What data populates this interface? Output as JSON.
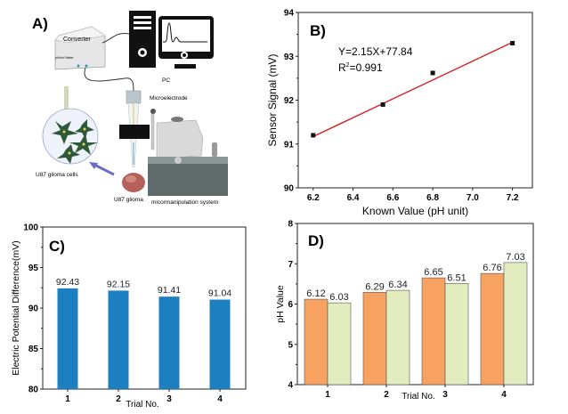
{
  "panel_a": {
    "label": "A)",
    "converter": "Converter",
    "meter": "pH/mV Meter",
    "pc": "PC",
    "microelectrode": "Microelectrode",
    "cells": "U87 glioma cells",
    "glioma": "U87 glioma",
    "system": "micormanipulation  system"
  },
  "chart_data": [
    {
      "id": "B",
      "type": "scatter",
      "panel_label": "B)",
      "xlabel": "Known Value (pH unit)",
      "ylabel": "Sensor Signal (mV)",
      "xlim": [
        6.125,
        7.3
      ],
      "ylim": [
        90,
        94
      ],
      "xticks": [
        6.2,
        6.4,
        6.6,
        6.8,
        7.0,
        7.2
      ],
      "xtick_labels": [
        "6.2",
        "6.4",
        "6.6",
        "6.8",
        "7.0",
        "7.2"
      ],
      "yticks": [
        90,
        91,
        92,
        93,
        94
      ],
      "x": [
        6.2,
        6.55,
        6.8,
        7.2
      ],
      "y": [
        91.2,
        91.9,
        92.62,
        93.3
      ],
      "fit": {
        "slope": 2.15,
        "intercept": 77.84,
        "color": "#d62020"
      },
      "equation": "Y=2.15X+77.84",
      "r2_prefix": "R",
      "r2_sup": "2",
      "r2_value": "=0.991"
    },
    {
      "id": "C",
      "type": "bar",
      "panel_label": "C)",
      "xlabel": "Trial No.",
      "ylabel": "Electric Potential Difference(mV)",
      "categories": [
        "1",
        "2",
        "3",
        "4"
      ],
      "values": [
        92.43,
        92.15,
        91.41,
        91.04
      ],
      "labels": [
        "92.43",
        "92.15",
        "91.41",
        "91.04"
      ],
      "ylim": [
        80,
        100
      ],
      "yticks": [
        80,
        85,
        90,
        95,
        100
      ],
      "color": "#1b7fc0"
    },
    {
      "id": "D",
      "type": "bar",
      "panel_label": "D)",
      "xlabel": "Trial No.",
      "ylabel": "pH Value",
      "categories": [
        "1",
        "2",
        "3",
        "4"
      ],
      "series": [
        {
          "color": "#f7a261",
          "values": [
            6.12,
            6.29,
            6.65,
            6.76
          ],
          "labels": [
            "6.12",
            "6.29",
            "6.65",
            "6.76"
          ]
        },
        {
          "color": "#e2ecbf",
          "values": [
            6.03,
            6.34,
            6.51,
            7.03
          ],
          "labels": [
            "6.03",
            "6.34",
            "6.51",
            "7.03"
          ]
        }
      ],
      "ylim": [
        4,
        8
      ],
      "yticks": [
        4,
        5,
        6,
        7,
        8
      ]
    }
  ]
}
